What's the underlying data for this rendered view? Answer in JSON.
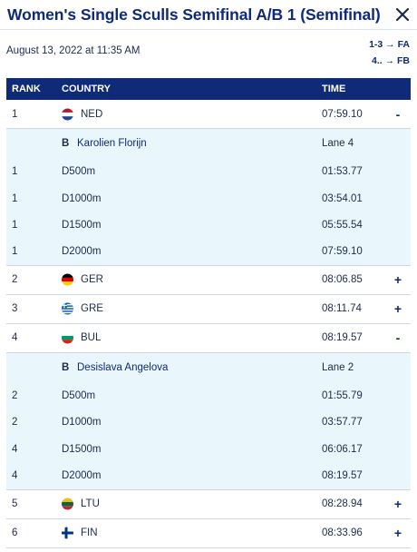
{
  "header": {
    "title": "Women's Single Sculls Semifinal A/B 1 (Semifinal)"
  },
  "meta": {
    "datetime": "August 13, 2022 at 11:35 AM",
    "legend": [
      "1-3 → FA",
      "4.. → FB"
    ]
  },
  "table": {
    "columns": {
      "rank": "RANK",
      "country": "COUNTRY",
      "time": "TIME"
    },
    "ned": {
      "rank": "1",
      "code": "NED",
      "time": "07:59.10",
      "toggle": "-",
      "boat": "B",
      "athlete": "Karolien Florijn",
      "lane": "Lane 4",
      "splits": [
        {
          "rank": "1",
          "dist": "D500m",
          "time": "01:53.77"
        },
        {
          "rank": "1",
          "dist": "D1000m",
          "time": "03:54.01"
        },
        {
          "rank": "1",
          "dist": "D1500m",
          "time": "05:55.54"
        },
        {
          "rank": "1",
          "dist": "D2000m",
          "time": "07:59.10"
        }
      ]
    },
    "ger": {
      "rank": "2",
      "code": "GER",
      "time": "08:06.85",
      "toggle": "+"
    },
    "gre": {
      "rank": "3",
      "code": "GRE",
      "time": "08:11.74",
      "toggle": "+"
    },
    "bul": {
      "rank": "4",
      "code": "BUL",
      "time": "08:19.57",
      "toggle": "-",
      "boat": "B",
      "athlete": "Desislava Angelova",
      "lane": "Lane 2",
      "splits": [
        {
          "rank": "2",
          "dist": "D500m",
          "time": "01:55.79"
        },
        {
          "rank": "2",
          "dist": "D1000m",
          "time": "03:57.77"
        },
        {
          "rank": "4",
          "dist": "D1500m",
          "time": "06:06.17"
        },
        {
          "rank": "4",
          "dist": "D2000m",
          "time": "08:19.57"
        }
      ]
    },
    "ltu": {
      "rank": "5",
      "code": "LTU",
      "time": "08:28.94",
      "toggle": "+"
    },
    "fin": {
      "rank": "6",
      "code": "FIN",
      "time": "08:33.96",
      "toggle": "+"
    }
  },
  "colors": {
    "accent": "#0e2a78",
    "detail_bg": "#e9f6fb",
    "divider": "#cfd7e2"
  },
  "icons": {
    "close": "close-icon"
  }
}
